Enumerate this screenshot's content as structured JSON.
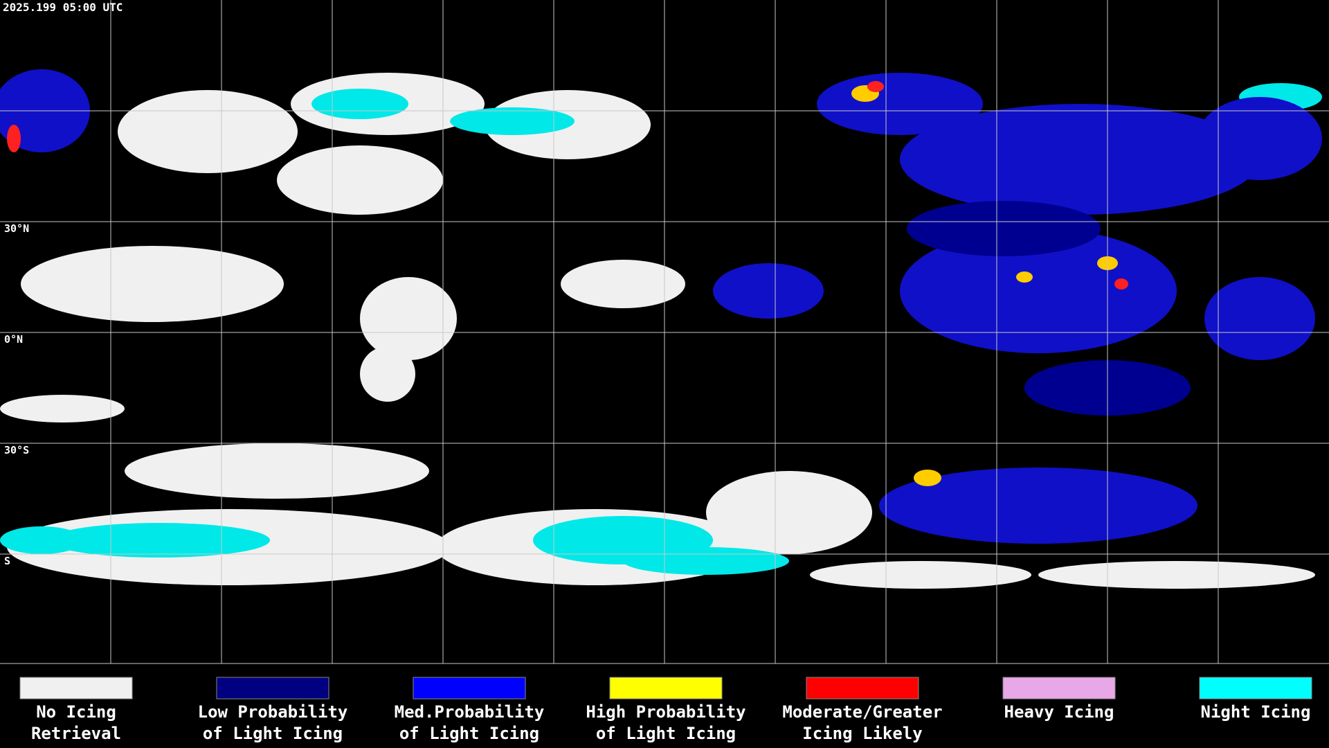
{
  "header": {
    "timestamp": "2025.199 05:00 UTC"
  },
  "map": {
    "latitude_labels": [
      "30°N",
      "0°N",
      "30°S",
      "S"
    ]
  },
  "legend": {
    "items": [
      {
        "color": "#f0f0f0",
        "lines": [
          "No Icing",
          "Retrieval"
        ]
      },
      {
        "color": "#000080",
        "lines": [
          "Low Probability",
          "of Light Icing"
        ]
      },
      {
        "color": "#0000ff",
        "lines": [
          "Med.Probability",
          "of Light Icing"
        ]
      },
      {
        "color": "#ffff00",
        "lines": [
          "High Probability",
          "of Light Icing"
        ]
      },
      {
        "color": "#ff0000",
        "lines": [
          "Moderate/Greater",
          "Icing Likely"
        ]
      },
      {
        "color": "#e8a8e8",
        "lines": [
          "Heavy Icing"
        ]
      },
      {
        "color": "#00ffff",
        "lines": [
          "Night Icing"
        ]
      }
    ]
  }
}
